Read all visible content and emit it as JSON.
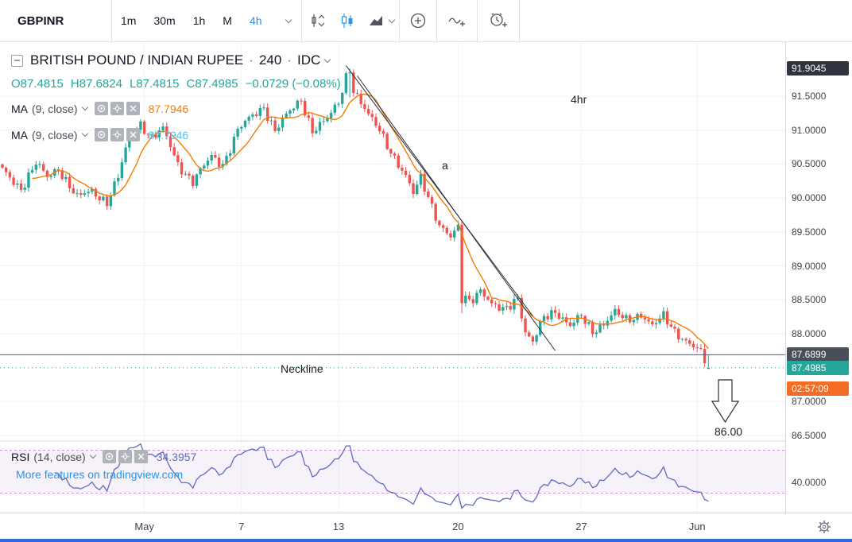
{
  "toolbar": {
    "symbol": "GBPINR",
    "timeframes": [
      "1m",
      "30m",
      "1h",
      "M",
      "4h"
    ],
    "active_timeframe": "4h",
    "accent_color": "#2196f3"
  },
  "legend": {
    "title": {
      "name": "BRITISH POUND / INDIAN RUPEE",
      "interval": "240",
      "exchange": "IDC"
    },
    "ohlc": {
      "open": "O87.4815",
      "high": "H87.6824",
      "low": "L87.4815",
      "close": "C87.4985",
      "change": "−0.0729 (−0.08%)",
      "color": "#26a69a"
    },
    "ma1": {
      "label": "MA",
      "params": "(9, close)",
      "value": "87.7946",
      "color": "#f57c00"
    },
    "ma2": {
      "label": "MA",
      "params": "(9, close)",
      "value": "87.7946",
      "color": "#4fc3f7"
    },
    "rsi": {
      "label": "RSI",
      "params": "(14, close)",
      "value": "34.3957",
      "color": "#5c6bc0"
    }
  },
  "annotations": {
    "interval_note": "4hr",
    "wave_label": "a",
    "neckline": "Neckline",
    "target": "86.00"
  },
  "watermark": "More features on tradingview.com",
  "price_axis": {
    "badges": [
      {
        "label": "91.9045",
        "price": 91.9045,
        "bg": "#30333d",
        "name": "trend-high-price-badge"
      },
      {
        "label": "87.6899",
        "price": 87.6899,
        "bg": "#4a4e59",
        "name": "neckline-price-badge"
      },
      {
        "label": "87.4985",
        "price": 87.4985,
        "bg": "#26a69a",
        "name": "last-price-badge"
      },
      {
        "label": "02:57:09",
        "price": 87.4985,
        "dy": 26,
        "bg": "#f36c24",
        "name": "bar-countdown-badge"
      }
    ],
    "rsi_tick": "40.0000"
  },
  "chart_data": {
    "type": "candlestick",
    "symbol": "GBPINR",
    "interval": "240",
    "title": "BRITISH POUND / INDIAN RUPEE · 240 · IDC",
    "bars": 190,
    "y_ticks": [
      "91.5000",
      "91.0000",
      "90.5000",
      "90.0000",
      "89.5000",
      "89.0000",
      "88.5000",
      "88.0000",
      "87.0000",
      "86.5000"
    ],
    "y_axis_range": [
      86.3,
      92.3
    ],
    "time_axis_labels": [
      {
        "label": "May",
        "bar": 38
      },
      {
        "label": "7",
        "bar": 64
      },
      {
        "label": "13",
        "bar": 90
      },
      {
        "label": "20",
        "bar": 122
      },
      {
        "label": "27",
        "bar": 155
      },
      {
        "label": "Jun",
        "bar": 186
      }
    ],
    "price_anchors": [
      [
        0,
        90.4
      ],
      [
        5,
        90.15
      ],
      [
        9,
        90.5
      ],
      [
        12,
        90.3
      ],
      [
        15,
        90.45
      ],
      [
        20,
        90.0
      ],
      [
        24,
        90.1
      ],
      [
        28,
        89.95
      ],
      [
        31,
        90.3
      ],
      [
        34,
        90.9
      ],
      [
        37,
        91.1
      ],
      [
        40,
        90.9
      ],
      [
        43,
        91.0
      ],
      [
        47,
        90.5
      ],
      [
        51,
        90.25
      ],
      [
        56,
        90.6
      ],
      [
        59,
        90.5
      ],
      [
        63,
        91.0
      ],
      [
        67,
        91.2
      ],
      [
        70,
        91.35
      ],
      [
        73,
        91.0
      ],
      [
        76,
        91.2
      ],
      [
        80,
        91.45
      ],
      [
        83,
        91.0
      ],
      [
        87,
        91.15
      ],
      [
        90,
        91.4
      ],
      [
        92,
        91.8
      ],
      [
        95,
        91.5
      ],
      [
        98,
        91.2
      ],
      [
        101,
        91.0
      ],
      [
        105,
        90.6
      ],
      [
        108,
        90.3
      ],
      [
        110,
        90.05
      ],
      [
        112,
        90.3
      ],
      [
        115,
        89.9
      ],
      [
        117,
        89.6
      ],
      [
        120,
        89.4
      ],
      [
        122,
        89.55
      ],
      [
        123,
        88.6
      ],
      [
        125,
        88.5
      ],
      [
        128,
        88.65
      ],
      [
        131,
        88.4
      ],
      [
        134,
        88.35
      ],
      [
        138,
        88.55
      ],
      [
        140,
        88.0
      ],
      [
        142,
        87.85
      ],
      [
        145,
        88.25
      ],
      [
        148,
        88.35
      ],
      [
        152,
        88.1
      ],
      [
        155,
        88.25
      ],
      [
        158,
        88.05
      ],
      [
        161,
        88.15
      ],
      [
        164,
        88.3
      ],
      [
        167,
        88.2
      ],
      [
        171,
        88.3
      ],
      [
        174,
        88.1
      ],
      [
        177,
        88.25
      ],
      [
        180,
        88.05
      ],
      [
        183,
        87.9
      ],
      [
        187,
        87.7
      ],
      [
        189,
        87.5
      ]
    ],
    "overrides": {
      "93": {
        "h": 91.9045,
        "l": 91.48,
        "c": 91.85
      },
      "123": {
        "c": 88.45,
        "l": 88.3
      },
      "189": {
        "o": 87.4815,
        "h": 87.6824,
        "l": 87.4815,
        "c": 87.4985
      }
    },
    "last_bar": {
      "open": 87.4815,
      "high": 87.6824,
      "low": 87.4815,
      "close": 87.4985,
      "change": -0.0729,
      "change_pct": -0.08
    },
    "up_color": "#26a69a",
    "down_color": "#ef5350",
    "ma": {
      "period": 9,
      "last_value": 87.7946,
      "color": "#f57c00"
    },
    "levels": {
      "neckline": 87.6899,
      "last_price": 87.4985,
      "target": 86.0,
      "trend_high": 91.9045
    },
    "trendlines": [
      {
        "from": [
          92,
          91.95
        ],
        "to": [
          142,
          88.26
        ]
      },
      {
        "from": [
          95,
          91.8
        ],
        "to": [
          148,
          87.75
        ]
      }
    ],
    "rsi": {
      "type": "line",
      "period": 14,
      "last_value": 34.3957,
      "band": [
        30,
        70
      ],
      "axis_tick": 40,
      "color": "#5c6bc0",
      "band_color": "#ab47bc"
    }
  }
}
